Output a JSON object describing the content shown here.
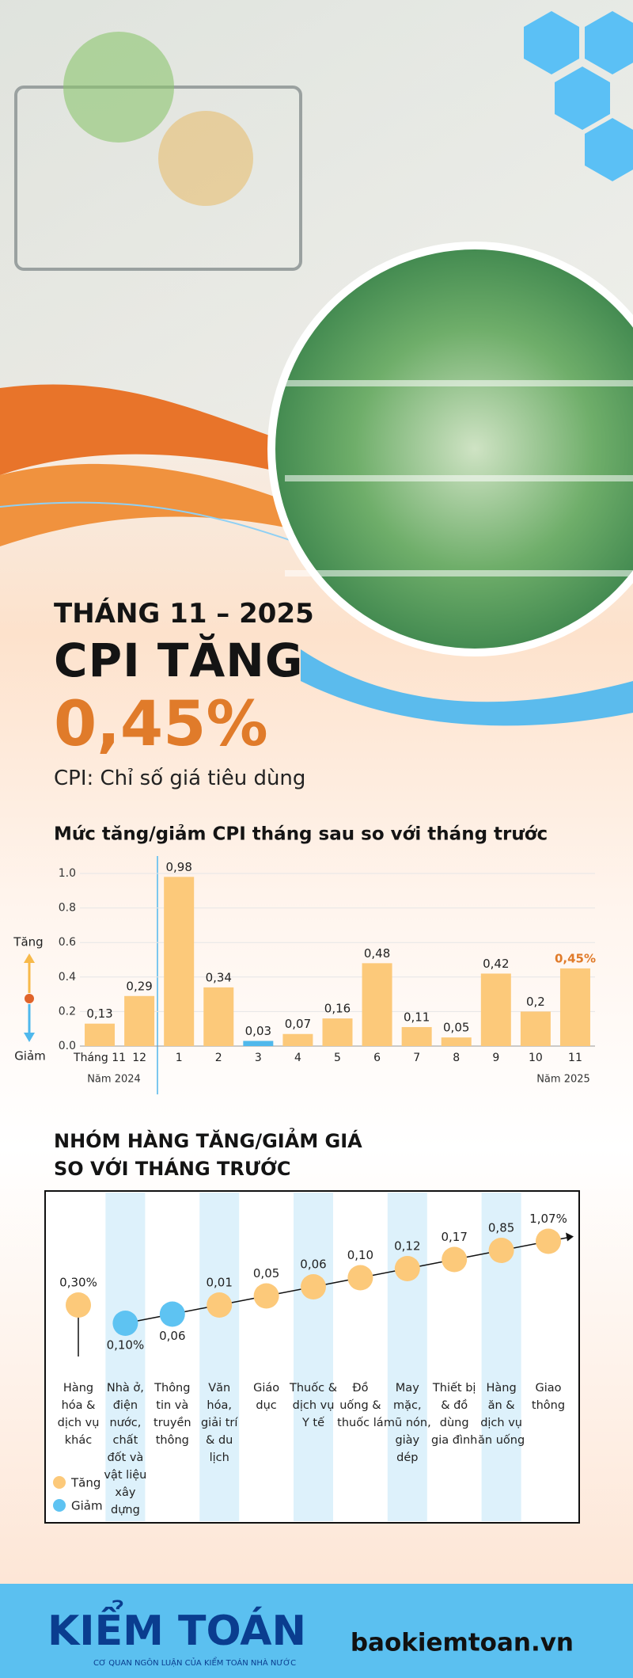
{
  "header": {
    "subtitle": "THÁNG 11 – 2025",
    "title": "CPI TĂNG",
    "highlight": "0,45%",
    "note": "CPI: Chỉ số giá tiêu dùng"
  },
  "chart_data": [
    {
      "type": "bar",
      "title": "Mức tăng/giảm CPI tháng sau so với tháng trước",
      "categories": [
        "Tháng 11",
        "12",
        "1",
        "2",
        "3",
        "4",
        "5",
        "6",
        "7",
        "8",
        "9",
        "10",
        "11"
      ],
      "values": [
        0.13,
        0.29,
        0.98,
        0.34,
        0.03,
        0.07,
        0.16,
        0.48,
        0.11,
        0.05,
        0.42,
        0.2,
        0.45
      ],
      "value_labels": [
        "0,13",
        "0,29",
        "0,98",
        "0,34",
        "0,03",
        "0,07",
        "0,16",
        "0,48",
        "0,11",
        "0,05",
        "0,42",
        "0,2",
        "0,45%"
      ],
      "colors": [
        "#fcc97a",
        "#fcc97a",
        "#fcc97a",
        "#fcc97a",
        "#4fb8ec",
        "#fcc97a",
        "#fcc97a",
        "#fcc97a",
        "#fcc97a",
        "#fcc97a",
        "#fcc97a",
        "#fcc97a",
        "#fcc97a"
      ],
      "value_label_colors": [
        "#222222",
        "#222222",
        "#222222",
        "#222222",
        "#222222",
        "#222222",
        "#222222",
        "#222222",
        "#222222",
        "#222222",
        "#222222",
        "#222222",
        "#e07b2a"
      ],
      "period_labels": [
        "Năm 2024",
        "Năm 2025"
      ],
      "legend": [
        {
          "name": "Tăng",
          "color": "#f7b94a"
        },
        {
          "name": "Giảm",
          "color": "#4fb8ec"
        }
      ],
      "ylim": [
        0,
        1.0
      ],
      "yticks": [
        {
          "value": 0,
          "label": "0.0"
        },
        0.2,
        0.4,
        0.6,
        0.8,
        {
          "value": 1.0,
          "label": "1.0"
        }
      ],
      "grid": true
    },
    {
      "type": "dot",
      "title": [
        "NHÓM HÀNG TĂNG/GIẢM GIÁ",
        "SO VỚI THÁNG TRƯỚC"
      ],
      "categories": [
        "Hàng hóa & dịch vụ khác",
        "Nhà ở, điện nước, chất đốt và vật liệu xây dựng",
        "Thông tin và truyền thông",
        "Văn hóa, giải trí & du lịch",
        "Giáo dục",
        "Thuốc & dịch vụ Y tế",
        "Đồ uống & thuốc lá",
        "May mặc, mũ nón, giày dép",
        "Thiết bị & đồ dùng gia đình",
        "Hàng ăn & dịch vụ ăn uống",
        "Giao thông"
      ],
      "values": [
        0.3,
        0.1,
        0.06,
        0.01,
        0.05,
        0.06,
        0.1,
        0.12,
        0.17,
        0.85,
        1.07
      ],
      "value_labels": [
        "0,30%",
        "0,10%",
        "0,06",
        "0,01",
        "0,05",
        "0,06",
        "0,10",
        "0,12",
        "0,17",
        "0,85",
        "1,07%"
      ],
      "colors": [
        "#fcc97a",
        "#5ec3f2",
        "#5ec3f2",
        "#fcc97a",
        "#fcc97a",
        "#fcc97a",
        "#fcc97a",
        "#fcc97a",
        "#fcc97a",
        "#fcc97a",
        "#fcc97a"
      ],
      "legend": [
        {
          "name": "Tăng",
          "color": "#fcc97a"
        },
        {
          "name": "Giảm",
          "color": "#5ec3f2"
        }
      ]
    }
  ],
  "footer": {
    "brand": "KIỂM TOÁN",
    "tagline": "CƠ QUAN NGÔN LUẬN CỦA KIỂM TOÁN NHÀ NƯỚC",
    "website": "baokiemtoan.vn"
  }
}
